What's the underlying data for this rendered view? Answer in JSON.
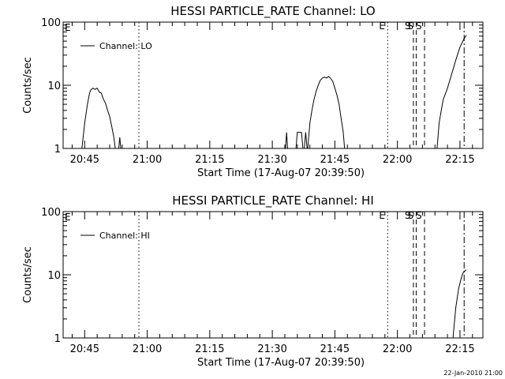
{
  "footer": "22-Jan-2010 21:00",
  "chart_data": [
    {
      "type": "line",
      "title": "HESSI PARTICLE_RATE Channel: LO",
      "xlabel": "Start Time (17-Aug-07 20:39:50)",
      "ylabel": "Counts/sec",
      "y_scale": "log",
      "ylim": [
        1,
        100
      ],
      "y_ticks": [
        1,
        10,
        100
      ],
      "y_tick_labels": [
        "1",
        "10",
        "100"
      ],
      "xlim": [
        "20:39:50",
        "22:20:30"
      ],
      "x_ticks": [
        "20:45",
        "21:00",
        "21:15",
        "21:30",
        "21:45",
        "22:00",
        "22:15"
      ],
      "legend": "Channel: LO",
      "legend_position": "top-left",
      "series": [
        {
          "name": "Channel: LO",
          "segments": [
            [
              [
                "20:44:20",
                1
              ],
              [
                "20:45:00",
                2.5
              ],
              [
                "20:45:40",
                5
              ],
              [
                "20:46:10",
                7.5
              ],
              [
                "20:46:30",
                8.5
              ],
              [
                "20:47:00",
                9
              ],
              [
                "20:47:30",
                8.6
              ],
              [
                "20:48:00",
                9
              ],
              [
                "20:48:30",
                7.8
              ],
              [
                "20:49:00",
                7.5
              ],
              [
                "20:49:30",
                6
              ],
              [
                "20:50:00",
                5.2
              ],
              [
                "20:50:30",
                4
              ],
              [
                "20:51:00",
                3.2
              ],
              [
                "20:51:30",
                2.2
              ],
              [
                "20:52:00",
                1.5
              ],
              [
                "20:52:20",
                1
              ]
            ],
            [
              [
                "20:53:10",
                1
              ],
              [
                "20:53:25",
                1.5
              ],
              [
                "20:53:40",
                1
              ]
            ],
            [
              [
                "21:33:10",
                1
              ],
              [
                "21:33:25",
                1.8
              ],
              [
                "21:33:40",
                1
              ]
            ],
            [
              [
                "21:35:40",
                1
              ],
              [
                "21:36:00",
                1.8
              ],
              [
                "21:37:00",
                1.8
              ],
              [
                "21:37:20",
                1
              ]
            ],
            [
              [
                "21:37:40",
                1
              ],
              [
                "21:38:00",
                1.8
              ],
              [
                "21:38:20",
                1
              ]
            ],
            [
              [
                "21:38:30",
                1
              ],
              [
                "21:39:00",
                2.5
              ],
              [
                "21:39:30",
                4
              ],
              [
                "21:40:00",
                6
              ],
              [
                "21:40:30",
                8
              ],
              [
                "21:41:00",
                10
              ],
              [
                "21:41:30",
                12
              ],
              [
                "21:42:00",
                13
              ],
              [
                "21:42:30",
                13.5
              ],
              [
                "21:43:00",
                13
              ],
              [
                "21:43:30",
                13.8
              ],
              [
                "21:44:00",
                12.8
              ],
              [
                "21:44:30",
                11.5
              ],
              [
                "21:45:00",
                9
              ],
              [
                "21:45:30",
                7
              ],
              [
                "21:46:00",
                5
              ],
              [
                "21:46:30",
                3
              ],
              [
                "21:47:00",
                1.8
              ],
              [
                "21:47:20",
                1
              ]
            ],
            [
              [
                "22:09:30",
                1
              ],
              [
                "22:10:00",
                2.5
              ],
              [
                "22:10:30",
                4
              ],
              [
                "22:11:00",
                6
              ],
              [
                "22:12:00",
                9
              ],
              [
                "22:13:00",
                15
              ],
              [
                "22:14:00",
                25
              ],
              [
                "22:15:00",
                40
              ],
              [
                "22:16:00",
                55
              ],
              [
                "22:16:30",
                62
              ]
            ]
          ]
        }
      ],
      "markers": [
        {
          "time": "20:58:00",
          "style": "dotted",
          "label": ""
        },
        {
          "time": "21:57:40",
          "style": "dotted",
          "label": "E"
        },
        {
          "time": "22:03:50",
          "style": "dashed",
          "label": "S"
        },
        {
          "time": "22:04:30",
          "style": "dashed",
          "label": "S"
        },
        {
          "time": "22:06:30",
          "style": "dashed",
          "label": "S"
        },
        {
          "time": "22:16:00",
          "style": "dashdot",
          "label": ""
        }
      ],
      "corner_label": "E"
    },
    {
      "type": "line",
      "title": "HESSI PARTICLE_RATE Channel: HI",
      "xlabel": "Start Time (17-Aug-07 20:39:50)",
      "ylabel": "Counts/sec",
      "y_scale": "log",
      "ylim": [
        1,
        100
      ],
      "y_ticks": [
        1,
        10,
        100
      ],
      "y_tick_labels": [
        "1",
        "10",
        "100"
      ],
      "xlim": [
        "20:39:50",
        "22:20:30"
      ],
      "x_ticks": [
        "20:45",
        "21:00",
        "21:15",
        "21:30",
        "21:45",
        "22:00",
        "22:15"
      ],
      "legend": "Channel: HI",
      "legend_position": "top-left",
      "series": [
        {
          "name": "Channel: HI",
          "segments": [
            [
              [
                "22:13:20",
                1
              ],
              [
                "22:14:00",
                3
              ],
              [
                "22:14:40",
                6
              ],
              [
                "22:15:20",
                9
              ],
              [
                "22:15:50",
                11
              ],
              [
                "22:16:30",
                12
              ]
            ]
          ]
        }
      ],
      "markers": [
        {
          "time": "20:58:00",
          "style": "dotted",
          "label": ""
        },
        {
          "time": "21:57:40",
          "style": "dotted",
          "label": "E"
        },
        {
          "time": "22:03:50",
          "style": "dashed",
          "label": "S"
        },
        {
          "time": "22:04:30",
          "style": "dashed",
          "label": "S"
        },
        {
          "time": "22:06:30",
          "style": "dashed",
          "label": "S"
        },
        {
          "time": "22:16:00",
          "style": "dashdot",
          "label": ""
        }
      ],
      "corner_label": "E"
    }
  ]
}
